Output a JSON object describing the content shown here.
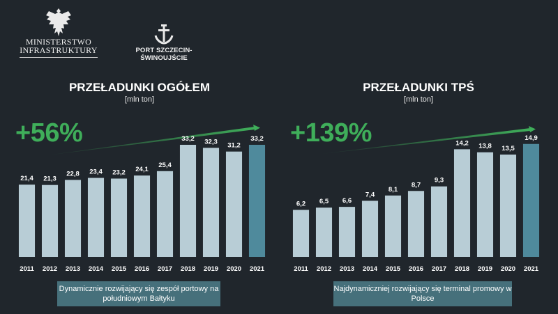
{
  "logos": {
    "ministry_line1": "MINISTERSTWO",
    "ministry_line2": "INFRASTRUKTURY",
    "port": "PORT SZCZECIN-ŚWINOUJŚCIE"
  },
  "colors": {
    "background": "#20262c",
    "bar": "#b8cdd6",
    "bar_highlight": "#4f8a9c",
    "growth": "#3fae5a",
    "footer_box": "#46707b"
  },
  "chart_data": [
    {
      "type": "bar",
      "title": "PRZEŁADUNKI OGÓŁEM",
      "unit": "[mln ton]",
      "growth_label": "+56%",
      "categories": [
        "2011",
        "2012",
        "2013",
        "2014",
        "2015",
        "2016",
        "2017",
        "2018",
        "2019",
        "2020",
        "2021"
      ],
      "values": [
        21.4,
        21.3,
        22.8,
        23.4,
        23.2,
        24.1,
        25.4,
        33.2,
        32.3,
        31.2,
        33.2
      ],
      "value_labels": [
        "21,4",
        "21,3",
        "22,8",
        "23,4",
        "23,2",
        "24,1",
        "25,4",
        "33,2",
        "32,3",
        "31,2",
        "33,2"
      ],
      "highlight_index": 10,
      "ylim": [
        0,
        40
      ],
      "footer": "Dynamicznie rozwijający się zespół portowy na południowym Bałtyku"
    },
    {
      "type": "bar",
      "title": "PRZEŁADUNKI TPŚ",
      "unit": "[mln ton]",
      "growth_label": "+139%",
      "categories": [
        "2011",
        "2012",
        "2013",
        "2014",
        "2015",
        "2016",
        "2017",
        "2018",
        "2019",
        "2020",
        "2021"
      ],
      "values": [
        6.2,
        6.5,
        6.6,
        7.4,
        8.1,
        8.7,
        9.3,
        14.2,
        13.8,
        13.5,
        14.9
      ],
      "value_labels": [
        "6,2",
        "6,5",
        "6,6",
        "7,4",
        "8,1",
        "8,7",
        "9,3",
        "14,2",
        "13,8",
        "13,5",
        "14,9"
      ],
      "highlight_index": 10,
      "ylim": [
        0,
        18
      ],
      "footer": "Najdynamiczniej rozwijający się terminal promowy w Polsce"
    }
  ]
}
